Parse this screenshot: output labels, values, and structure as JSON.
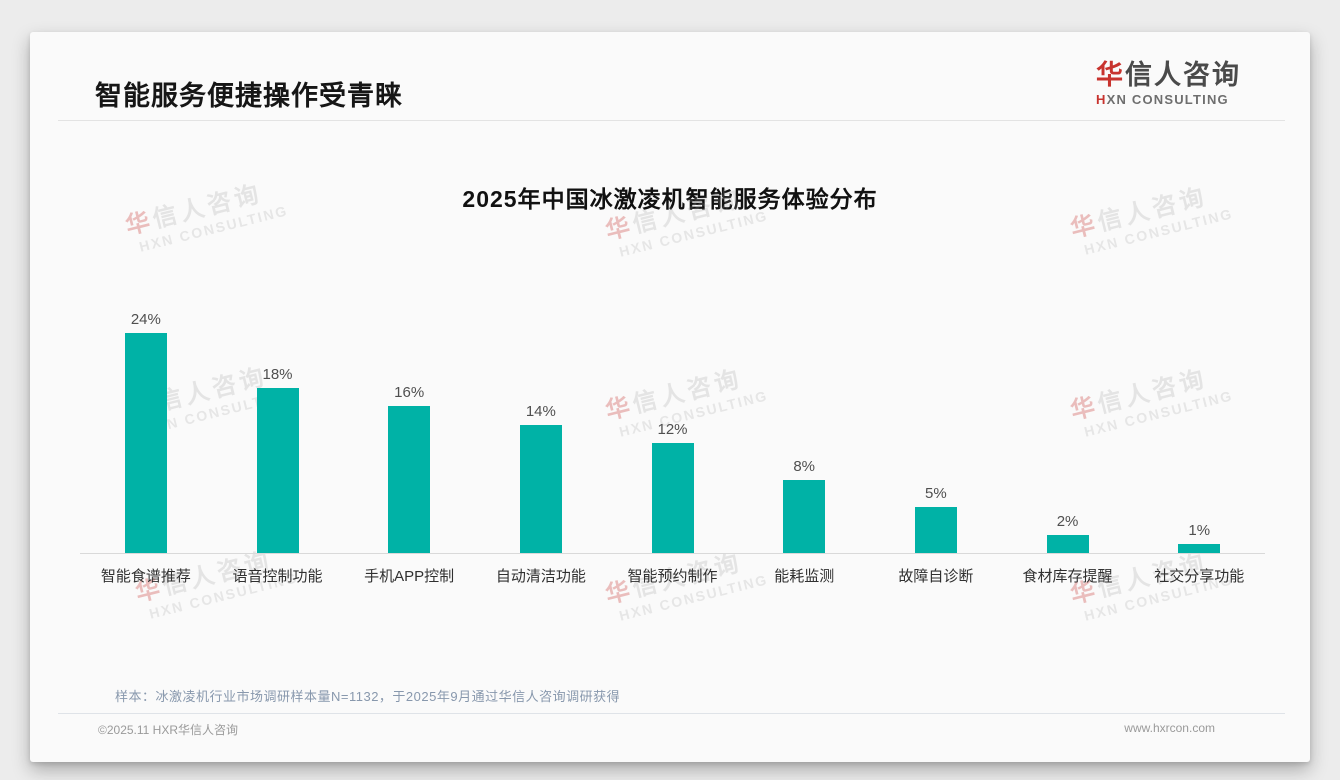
{
  "page": {
    "title": "智能服务便捷操作受青睐",
    "note": "样本：冰激凌机行业市场调研样本量N=1132，于2025年9月通过华信人咨询调研获得",
    "footer_left": "©2025.11 HXR华信人咨询",
    "footer_right": "www.hxrcon.com"
  },
  "logo": {
    "cn_first": "华",
    "cn_rest": "信人咨询",
    "en_first": "H",
    "en_rest": "XN CONSULTING"
  },
  "watermark": {
    "line1_first": "华",
    "line1_rest": "信人咨询",
    "line2": "HXN CONSULTING"
  },
  "chart_data": {
    "type": "bar",
    "title": "2025年中国冰激凌机智能服务体验分布",
    "categories": [
      "智能食谱推荐",
      "语音控制功能",
      "手机APP控制",
      "自动清洁功能",
      "智能预约制作",
      "能耗监测",
      "故障自诊断",
      "食材库存提醒",
      "社交分享功能"
    ],
    "values": [
      24,
      18,
      16,
      14,
      12,
      8,
      5,
      2,
      1
    ],
    "value_labels": [
      "24%",
      "18%",
      "16%",
      "14%",
      "12%",
      "8%",
      "5%",
      "2%",
      "1%"
    ],
    "unit": "%",
    "bar_color": "#00b2a6",
    "ylim": [
      0,
      26
    ],
    "grid": false,
    "legend": "none",
    "xlabel": "",
    "ylabel": ""
  },
  "colors": {
    "accent_red": "#c8332e",
    "bar_teal": "#00b2a6"
  }
}
